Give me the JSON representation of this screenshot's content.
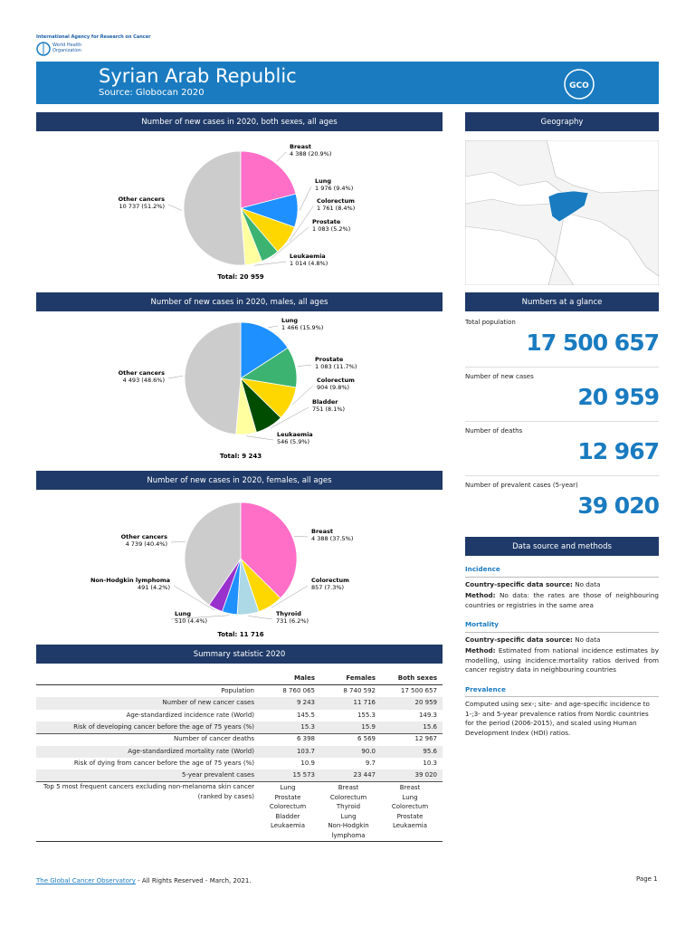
{
  "header": {
    "org": "International Agency for Research on Cancer",
    "who": [
      "World Health",
      "Organization"
    ],
    "title": "Syrian Arab Republic",
    "source": "Source: Globocan 2020",
    "logo": "GCO"
  },
  "chart_data": [
    {
      "type": "pie",
      "title": "Number of new cases in 2020, both sexes, all ages",
      "categories": [
        "Breast",
        "Lung",
        "Colorectum",
        "Prostate",
        "Leukaemia",
        "Other cancers"
      ],
      "values": [
        4388,
        1976,
        1761,
        1083,
        1014,
        10737
      ],
      "value_labels": [
        "4 388 (20.9%)",
        "1 976 (9.4%)",
        "1 761 (8.4%)",
        "1 083 (5.2%)",
        "1 014 (4.8%)",
        "10 737 (51.2%)"
      ],
      "colors": [
        "#ff6ec7",
        "#1e90ff",
        "#ffd700",
        "#3cb371",
        "#ffffa0",
        "#cccccc"
      ],
      "total": "Total: 20 959"
    },
    {
      "type": "pie",
      "title": "Number of new cases in 2020, males, all ages",
      "categories": [
        "Lung",
        "Prostate",
        "Colorectum",
        "Bladder",
        "Leukaemia",
        "Other cancers"
      ],
      "values": [
        1466,
        1083,
        904,
        751,
        546,
        4493
      ],
      "value_labels": [
        "1 466 (15.9%)",
        "1 083 (11.7%)",
        "904 (9.8%)",
        "751 (8.1%)",
        "546 (5.9%)",
        "4 493 (48.6%)"
      ],
      "colors": [
        "#1e90ff",
        "#3cb371",
        "#ffd700",
        "#004d00",
        "#ffffa0",
        "#cccccc"
      ],
      "total": "Total: 9 243"
    },
    {
      "type": "pie",
      "title": "Number of new cases in 2020, females, all ages",
      "categories": [
        "Breast",
        "Colorectum",
        "Thyroid",
        "Lung",
        "Non-Hodgkin lymphoma",
        "Other cancers"
      ],
      "values": [
        4388,
        857,
        731,
        510,
        491,
        4739
      ],
      "value_labels": [
        "4 388 (37.5%)",
        "857 (7.3%)",
        "731 (6.2%)",
        "510 (4.4%)",
        "491 (4.2%)",
        "4 739 (40.4%)"
      ],
      "colors": [
        "#ff6ec7",
        "#ffd700",
        "#add8e6",
        "#1e90ff",
        "#9932cc",
        "#cccccc"
      ],
      "total": "Total: 11 716"
    }
  ],
  "geography": {
    "title": "Geography"
  },
  "glance": {
    "title": "Numbers at a glance",
    "items": [
      {
        "label": "Total population",
        "value": "17 500 657"
      },
      {
        "label": "Number of new cases",
        "value": "20 959"
      },
      {
        "label": "Number of deaths",
        "value": "12 967"
      },
      {
        "label": "Number of prevalent cases (5-year)",
        "value": "39 020"
      }
    ]
  },
  "methods": {
    "title": "Data source and methods",
    "sections": [
      {
        "heading": "Incidence",
        "paragraphs": [
          {
            "lead": "Country-specific data source:",
            "text": "No data"
          },
          {
            "lead": "Method:",
            "text": "No data: the rates are those of neighbouring countries or registries in the same area"
          }
        ]
      },
      {
        "heading": "Mortality",
        "paragraphs": [
          {
            "lead": "Country-specific data source:",
            "text": "No data"
          },
          {
            "lead": "Method:",
            "text": "Estimated from national incidence estimates by modelling, using incidence:mortality ratios derived from cancer registry data in neighbouring countries"
          }
        ]
      },
      {
        "heading": "Prevalence",
        "paragraphs": [
          {
            "lead": "",
            "text": "Computed using sex-; site- and age-specific incidence to 1-;3- and 5-year prevalence ratios from Nordic countries for the period (2006-2015), and scaled using Human Development Index (HDI) ratios."
          }
        ]
      }
    ]
  },
  "summary": {
    "title": "Summary statistic 2020",
    "columns": [
      "Males",
      "Females",
      "Both sexes"
    ],
    "rows": [
      [
        "Population",
        "8 760 065",
        "8 740 592",
        "17 500 657"
      ],
      [
        "Number of new cancer cases",
        "9 243",
        "11 716",
        "20 959"
      ],
      [
        "Age-standardized incidence rate (World)",
        "145.5",
        "155.3",
        "149.3"
      ],
      [
        "Risk of developing cancer before the age of 75 years (%)",
        "15.3",
        "15.9",
        "15.6"
      ],
      [
        "Number of cancer deaths",
        "6 398",
        "6 569",
        "12 967"
      ],
      [
        "Age-standardized mortality rate (World)",
        "103.7",
        "90.0",
        "95.6"
      ],
      [
        "Risk of dying from cancer before the age of 75 years (%)",
        "10.9",
        "9.7",
        "10.3"
      ],
      [
        "5-year prevalent cases",
        "15 573",
        "23 447",
        "39 020"
      ]
    ],
    "top5": {
      "label": [
        "Top 5 most frequent cancers excluding non-melanoma skin cancer",
        "(ranked by cases)"
      ],
      "lists": [
        [
          "Lung",
          "Prostate",
          "Colorectum",
          "Bladder",
          "Leukaemia"
        ],
        [
          "Breast",
          "Colorectum",
          "Thyroid",
          "Lung",
          "Non-Hodgkin lymphoma"
        ],
        [
          "Breast",
          "Lung",
          "Colorectum",
          "Prostate",
          "Leukaemia"
        ]
      ]
    }
  },
  "footer": {
    "link": "The Global Cancer Observatory",
    "rest": "- All Rights Reserved - March, 2021.",
    "page": "Page 1"
  }
}
